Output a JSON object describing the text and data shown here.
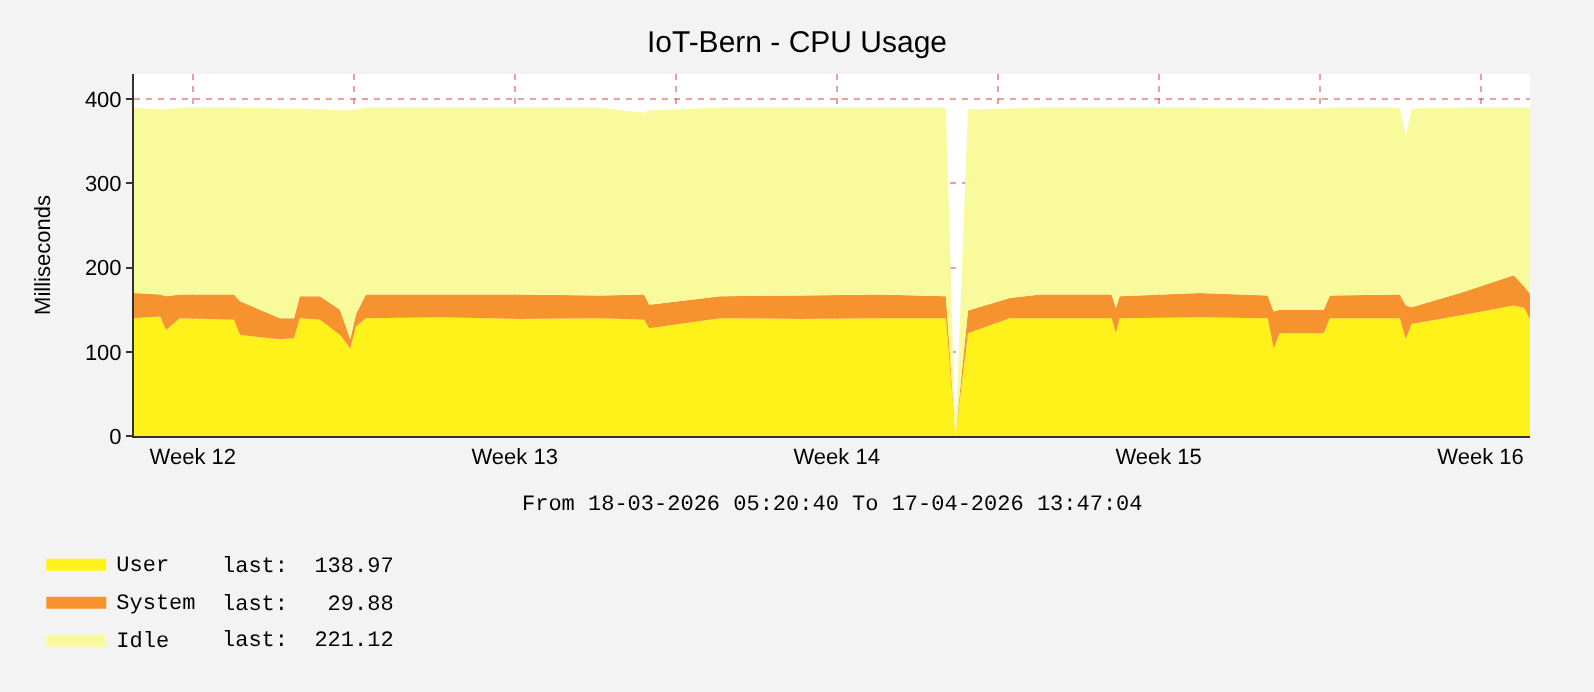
{
  "chart_data": {
    "type": "area",
    "stacked": true,
    "title": "IoT-Bern - CPU Usage",
    "ylabel": "Milliseconds",
    "x": [
      "2026-03-18T05:20",
      "2026-03-18T19:00",
      "2026-03-18T22:00",
      "2026-03-19T05:20",
      "2026-03-20T09:30",
      "2026-03-20T12:40",
      "2026-03-21T09:30",
      "2026-03-21T16:50",
      "2026-03-21T19:50",
      "2026-03-22T06:20",
      "2026-03-22T16:50",
      "2026-03-22T22:10",
      "2026-03-23T01:10",
      "2026-03-23T06:20",
      "2026-03-24T20:50",
      "2026-03-26T14:40",
      "2026-03-28T08:30",
      "2026-03-29T07:30",
      "2026-03-29T10:10",
      "2026-03-30T23:10",
      "2026-04-01T16:50",
      "2026-04-03T10:40",
      "2026-04-04T21:00",
      "2026-04-05T02:00",
      "2026-04-05T08:30",
      "2026-04-06T06:20",
      "2026-04-06T22:10",
      "2026-04-08T11:30",
      "2026-04-08T13:40",
      "2026-04-08T15:40",
      "2026-04-10T09:30",
      "2026-04-11T20:56",
      "2026-04-12T00:00",
      "2026-04-12T03:10",
      "2026-04-13T02:10",
      "2026-04-13T05:20",
      "2026-04-14T17:50",
      "2026-04-14T21:00",
      "2026-04-15T00:00",
      "2026-04-16T01:20",
      "2026-04-17T05:20",
      "2026-04-17T10:40",
      "2026-04-17T13:47"
    ],
    "series": [
      {
        "name": "User",
        "color": "#fff21a",
        "values": [
          140,
          142,
          126,
          140,
          138,
          120,
          115,
          116,
          140,
          138,
          120,
          104,
          130,
          140,
          141,
          139,
          140,
          138,
          128,
          140,
          139,
          140,
          140,
          null,
          122,
          140,
          140,
          140,
          122,
          140,
          141,
          140,
          104,
          122,
          122,
          140,
          140,
          115,
          133,
          143,
          155,
          152,
          139
        ]
      },
      {
        "name": "System",
        "color": "#f7932e",
        "values": [
          30,
          26,
          40,
          28,
          30,
          40,
          25,
          24,
          26,
          28,
          30,
          11,
          15,
          28,
          27,
          29,
          27,
          30,
          28,
          26,
          28,
          28,
          26,
          null,
          27,
          24,
          28,
          28,
          30,
          26,
          29,
          27,
          44,
          28,
          28,
          27,
          28,
          40,
          20,
          27,
          36,
          26,
          30
        ]
      },
      {
        "name": "Idle",
        "color": "#f9fa9c",
        "values": [
          220,
          220,
          222,
          222,
          222,
          230,
          249,
          249,
          223,
          222,
          237,
          272,
          243,
          222,
          222,
          222,
          223,
          216,
          231,
          224,
          223,
          222,
          224,
          null,
          239,
          225,
          222,
          222,
          238,
          224,
          220,
          222,
          241,
          239,
          239,
          223,
          222,
          201,
          236,
          220,
          199,
          212,
          221
        ]
      }
    ],
    "xlim": [
      "2026-03-18T05:20",
      "2026-04-17T13:47"
    ],
    "xticks": [
      {
        "value": "2026-03-19T12:00",
        "label": "Week 12"
      },
      {
        "value": "2026-03-23T00:00",
        "label": null
      },
      {
        "value": "2026-03-26T12:00",
        "label": "Week 13"
      },
      {
        "value": "2026-03-30T00:00",
        "label": null
      },
      {
        "value": "2026-04-02T12:00",
        "label": "Week 14"
      },
      {
        "value": "2026-04-06T00:00",
        "label": null
      },
      {
        "value": "2026-04-09T12:00",
        "label": "Week 15"
      },
      {
        "value": "2026-04-13T00:00",
        "label": null
      },
      {
        "value": "2026-04-16T12:00",
        "label": "Week 16"
      }
    ],
    "ylim": [
      0,
      430
    ],
    "yticks": [
      0,
      100,
      200,
      300,
      400
    ],
    "grid": true,
    "legend": "bottom left",
    "annotations": [
      "From 18-03-2026 05:20:40 To 17-04-2026 13:47:04",
      "last:  138.97",
      "last:   29.88",
      "last:  221.12"
    ]
  }
}
